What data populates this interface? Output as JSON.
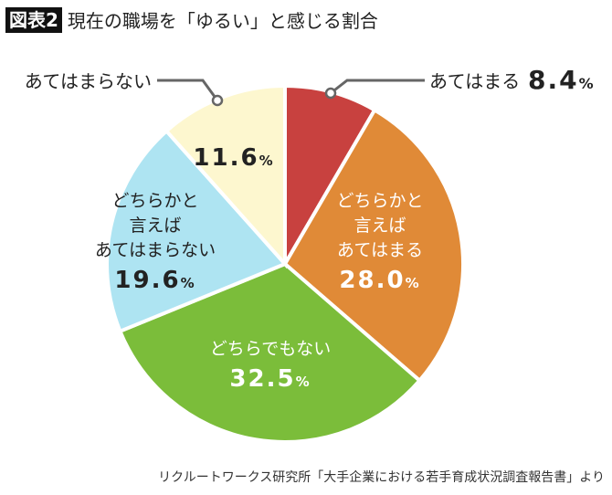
{
  "header": {
    "badge": "図表2",
    "title": "現在の職場を「ゆるい」と感じる割合"
  },
  "source": "リクルートワークス研究所「大手企業における若手育成状況調査報告書」より",
  "chart_data": {
    "type": "pie",
    "start": "top",
    "direction": "clockwise",
    "slices": [
      {
        "label": [
          "あてはまる"
        ],
        "value": 8.4,
        "display": "8.4",
        "color": "#c8413f",
        "text_color": "#222",
        "outside": true
      },
      {
        "label": [
          "どちらかと",
          "言えば",
          "あてはまる"
        ],
        "value": 28.0,
        "display": "28.0",
        "color": "#e08a37",
        "text_color": "#fff"
      },
      {
        "label": [
          "どちらでもない"
        ],
        "value": 32.5,
        "display": "32.5",
        "color": "#7bbd3a",
        "text_color": "#fff"
      },
      {
        "label": [
          "どちらかと",
          "言えば",
          "あてはまらない"
        ],
        "value": 19.6,
        "display": "19.6",
        "color": "#aee4f2",
        "text_color": "#222"
      },
      {
        "label": [
          "あてはまらない"
        ],
        "value": 11.6,
        "display": "11.6",
        "color": "#fdf7cf",
        "text_color": "#222",
        "outside": true
      }
    ],
    "unit": "%"
  }
}
